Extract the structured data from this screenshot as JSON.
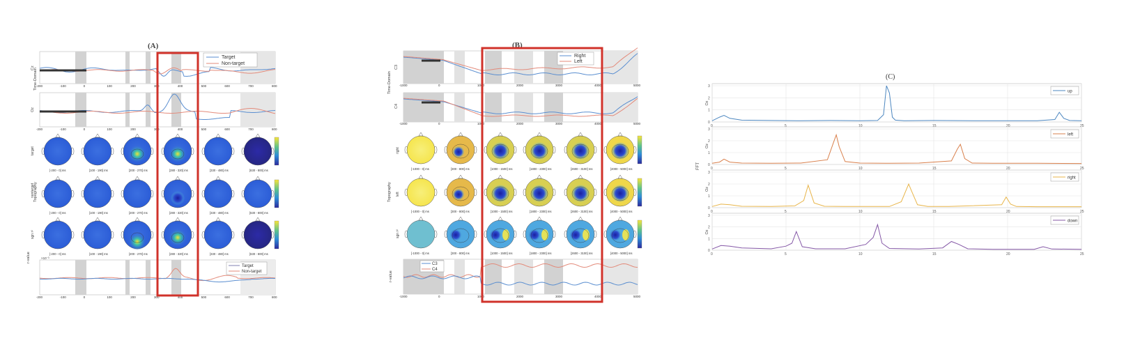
{
  "panelA": {
    "title": "(A)",
    "ylab_timedomain": "Time-Domain",
    "ylab_topography": "Topography",
    "ylab_rvalue": "r-value",
    "legend1": [
      "Target",
      "Non-target"
    ],
    "legend2": [
      "Target",
      "Non-target"
    ],
    "row_labels": [
      "target",
      "nontarget",
      "sgn r²"
    ],
    "time_ticks": [
      "-200",
      "-100",
      "0",
      "100",
      "200",
      "300",
      "400",
      "500",
      "600",
      "700",
      "800"
    ],
    "topo_labels": [
      "[-200 - 0] ms",
      "[100 - 190] ms",
      "[200 - 270] ms",
      "[280 - 320] ms",
      "[330 - 480] ms",
      "[630 - 800] ms"
    ],
    "ch1": "Cz",
    "ch2": "Oz",
    "scale_exp": "×10⁻³"
  },
  "panelB": {
    "title": "(B)",
    "ylab_timedomain": "Time-Domain",
    "ylab_topography": "Topography",
    "ylab_rvalue": "r-value",
    "legend1": [
      "Right",
      "Left"
    ],
    "legend2": [
      "C3",
      "C4"
    ],
    "row_labels": [
      "right",
      "left",
      "sgn r²"
    ],
    "time_ticks": [
      "-1000",
      "0",
      "1000",
      "2000",
      "3000",
      "4000",
      "5000"
    ],
    "topo_labels": [
      "[-1000 - 0] ms",
      "[300 - 800] ms",
      "[1000 - 1500] ms",
      "[1800 - 2300] ms",
      "[2600 - 3100] ms",
      "[4000 - 5000] ms"
    ],
    "ch1": "C3",
    "ch2": "C4"
  },
  "chart_data": {
    "type": "line",
    "title": "(C)",
    "ylabel": "FFT",
    "xlim": [
      0,
      25
    ],
    "x_ticks": [
      "0",
      "5",
      "10",
      "15",
      "20",
      "25"
    ],
    "y_ticks": [
      "0",
      "1",
      "2",
      "3"
    ],
    "grid": true,
    "colors": {
      "up": "#4d87c0",
      "left": "#d9804c",
      "right": "#e8b54a",
      "down": "#8457a6"
    },
    "series": [
      {
        "name": "up",
        "ylabel": "Oz",
        "ylim": [
          0,
          3
        ],
        "x": [
          0,
          0.5,
          0.8,
          1.2,
          2,
          4,
          6,
          8,
          10,
          11.2,
          11.6,
          11.8,
          12.0,
          12.2,
          12.4,
          13,
          15,
          18,
          22,
          23.2,
          23.5,
          23.8,
          24.2,
          25
        ],
        "y": [
          0.1,
          0.4,
          0.55,
          0.3,
          0.15,
          0.12,
          0.1,
          0.12,
          0.1,
          0.12,
          0.6,
          3.0,
          2.4,
          0.4,
          0.15,
          0.1,
          0.12,
          0.1,
          0.1,
          0.2,
          0.8,
          0.3,
          0.12,
          0.1
        ]
      },
      {
        "name": "left",
        "ylabel": "Oz",
        "ylim": [
          0,
          3
        ],
        "x": [
          0,
          0.5,
          0.8,
          1.2,
          2,
          4,
          6,
          7.8,
          8.2,
          8.4,
          8.6,
          9.0,
          10,
          12,
          14,
          16.2,
          16.6,
          16.8,
          17.1,
          17.6,
          19,
          22,
          25
        ],
        "y": [
          0.1,
          0.2,
          0.45,
          0.2,
          0.12,
          0.1,
          0.12,
          0.4,
          1.8,
          2.5,
          1.5,
          0.25,
          0.12,
          0.1,
          0.12,
          0.3,
          1.3,
          1.7,
          0.5,
          0.12,
          0.1,
          0.1,
          0.08
        ]
      },
      {
        "name": "right",
        "ylabel": "Oz",
        "ylim": [
          0,
          3
        ],
        "x": [
          0,
          0.6,
          1.2,
          2,
          4,
          5.6,
          6.2,
          6.5,
          6.9,
          7.6,
          9,
          12,
          12.8,
          13.3,
          13.5,
          13.9,
          14.6,
          16,
          19.6,
          19.9,
          20.2,
          20.6,
          22,
          25
        ],
        "y": [
          0.1,
          0.3,
          0.25,
          0.12,
          0.1,
          0.15,
          0.6,
          1.9,
          0.4,
          0.12,
          0.1,
          0.1,
          0.5,
          2.0,
          1.4,
          0.25,
          0.1,
          0.1,
          0.25,
          0.9,
          0.3,
          0.1,
          0.08,
          0.08
        ]
      },
      {
        "name": "down",
        "ylabel": "Oz",
        "ylim": [
          0,
          3
        ],
        "x": [
          0,
          0.6,
          1.2,
          2,
          4,
          5.0,
          5.4,
          5.7,
          6.1,
          7,
          9,
          10.4,
          10.9,
          11.2,
          11.5,
          12,
          14,
          15.6,
          16.2,
          16.7,
          17.3,
          19,
          21.8,
          22.4,
          23,
          25
        ],
        "y": [
          0.1,
          0.4,
          0.35,
          0.2,
          0.12,
          0.35,
          0.6,
          1.6,
          0.3,
          0.12,
          0.12,
          0.5,
          1.1,
          2.2,
          0.6,
          0.15,
          0.1,
          0.2,
          0.75,
          0.5,
          0.12,
          0.08,
          0.08,
          0.3,
          0.1,
          0.08
        ]
      }
    ]
  }
}
